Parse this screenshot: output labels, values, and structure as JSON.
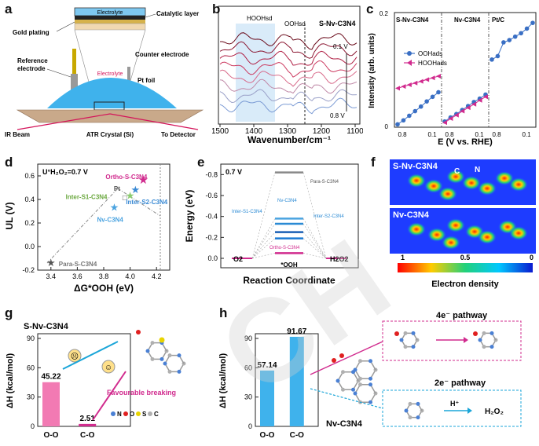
{
  "panels": {
    "a": {
      "label": "a",
      "electrolyte_top": "Electrolyte",
      "catalytic_layer": "Catalytic layer",
      "gold_plating": "Gold plating",
      "reference_electrode": "Reference\nelectrode",
      "counter_electrode": "Counter electrode",
      "electrolyte_mid": "Electrolyte",
      "pt_foil": "Pt foil",
      "ir_beam": "IR Beam",
      "atr_crystal": "ATR Crystal (Si)",
      "to_detector": "To Detector"
    },
    "b": {
      "label": "b",
      "sample": "S-Nv-C3N4",
      "band1": "HOOHsd",
      "band2": "OOHsd",
      "v_top": "0.1 V",
      "v_bottom": "0.8 V",
      "xlabel": "Wavenumber/cm⁻¹",
      "ticks": [
        "1500",
        "1400",
        "1300",
        "1200",
        "1100"
      ]
    },
    "c": {
      "label": "c",
      "ylabel": "Intensity (arb. units)",
      "xlabel": "E (V vs. RHE)",
      "group1": "S-Nv-C3N4",
      "group2": "Nv-C3N4",
      "group3": "Pt/C",
      "legend1": "OOHads",
      "legend2": "HOOHads",
      "ytick_top": "0.2",
      "ytick_bottom": "0",
      "xticks": [
        "0.8",
        "0.1",
        "0.8",
        "0.1",
        "0.8",
        "0.1"
      ]
    },
    "d": {
      "label": "d",
      "annotation": "U°H₂O₂=0.7 V",
      "ylabel": "UL (V)",
      "xlabel": "ΔG*OOH (eV)",
      "yticks": [
        "0.6",
        "0.4",
        "0.2",
        "0.0",
        "-0.2"
      ],
      "xticks": [
        "3.4",
        "3.6",
        "3.8",
        "4.0",
        "4.2"
      ],
      "point_labels": [
        "Ortho-S-C3N4",
        "Pt",
        "Inter-S1-C3N4",
        "Inter-S2-C3N4",
        "Nv-C3N4",
        "Para-S-C3N4"
      ]
    },
    "e": {
      "label": "e",
      "potential": "0.7 V",
      "ylabel": "Energy (eV)",
      "xlabel": "Reaction Coordinate",
      "yticks": [
        "-0.8",
        "-0.6",
        "-0.4",
        "-0.2",
        "0.0"
      ],
      "start": "O2",
      "end": "H2O2",
      "intermediate": "*OOH",
      "levels": [
        "Para-S-C3N4",
        "Inter-S1-C3N4",
        "Nv-C3N4",
        "Inter-S2-C3N4",
        "Ortho-S-C3N4"
      ]
    },
    "f": {
      "label": "f",
      "top_title": "S-Nv-C3N4",
      "bottom_title": "Nv-C3N4",
      "atom_c": "C",
      "atom_n": "N",
      "cb_ticks": [
        "1",
        "0.5",
        "0"
      ],
      "cb_label": "Electron density"
    },
    "g": {
      "label": "g",
      "title": "S-Nv-C3N4",
      "ylabel": "ΔH (kcal/mol)",
      "yticks": [
        "90",
        "60",
        "30",
        "0"
      ],
      "annotation": "Favourable breaking",
      "legend": [
        "N",
        "O",
        "S",
        "C"
      ]
    },
    "h": {
      "label": "h",
      "ylabel": "ΔH (kcal/mol)",
      "yticks": [
        "90",
        "60",
        "30",
        "0"
      ],
      "sample": "Nv-C3N4",
      "pathway4": "4e⁻ pathway",
      "pathway2": "2e⁻ pathway",
      "hplus": "H⁺",
      "product": "H₂O₂"
    }
  },
  "chart_data": [
    {
      "id": "c",
      "type": "scatter",
      "xlabel": "E (V vs. RHE)",
      "ylabel": "Intensity (arb. units)",
      "ylim": [
        0,
        0.2
      ],
      "series": [
        {
          "name": "OOHads S-Nv-C3N4",
          "values": [
            0.005,
            0.012,
            0.02,
            0.028,
            0.036,
            0.045,
            0.053,
            0.061
          ]
        },
        {
          "name": "HOOHads S-Nv-C3N4",
          "values": [
            0.068,
            0.071,
            0.074,
            0.077,
            0.08,
            0.083,
            0.086,
            0.089
          ]
        },
        {
          "name": "OOHads Nv-C3N4",
          "values": [
            0.01,
            0.017,
            0.023,
            0.03,
            0.037,
            0.044,
            0.05,
            0.057
          ]
        },
        {
          "name": "HOOHads Nv-C3N4",
          "values": [
            0.008,
            0.015,
            0.021,
            0.028,
            0.034,
            0.04,
            0.047,
            0.053
          ]
        },
        {
          "name": "OOHads Pt/C",
          "values": [
            0.118,
            0.124,
            0.148,
            0.152,
            0.158,
            0.164,
            0.172,
            0.182
          ]
        }
      ]
    },
    {
      "id": "d",
      "type": "scatter",
      "xlabel": "ΔG*OOH (eV)",
      "ylabel": "UL (V)",
      "xlim": [
        3.3,
        4.3
      ],
      "ylim": [
        -0.2,
        0.7
      ],
      "points": [
        {
          "name": "Ortho-S-C3N4",
          "x": 4.1,
          "y": 0.56
        },
        {
          "name": "Pt",
          "x": 3.96,
          "y": 0.42
        },
        {
          "name": "Inter-S1-C3N4",
          "x": 4.0,
          "y": 0.43
        },
        {
          "name": "Inter-S2-C3N4",
          "x": 4.04,
          "y": 0.48
        },
        {
          "name": "Nv-C3N4",
          "x": 3.88,
          "y": 0.33
        },
        {
          "name": "Para-S-C3N4",
          "x": 3.4,
          "y": -0.14
        }
      ]
    },
    {
      "id": "g",
      "type": "bar",
      "ylabel": "ΔH (kcal/mol)",
      "ylim": [
        0,
        90
      ],
      "categories": [
        "O-O",
        "C-O"
      ],
      "values": [
        45.22,
        2.51
      ]
    },
    {
      "id": "h",
      "type": "bar",
      "ylabel": "ΔH (kcal/mol)",
      "ylim": [
        0,
        90
      ],
      "categories": [
        "O-O",
        "C-O"
      ],
      "values": [
        57.14,
        91.67
      ]
    }
  ]
}
